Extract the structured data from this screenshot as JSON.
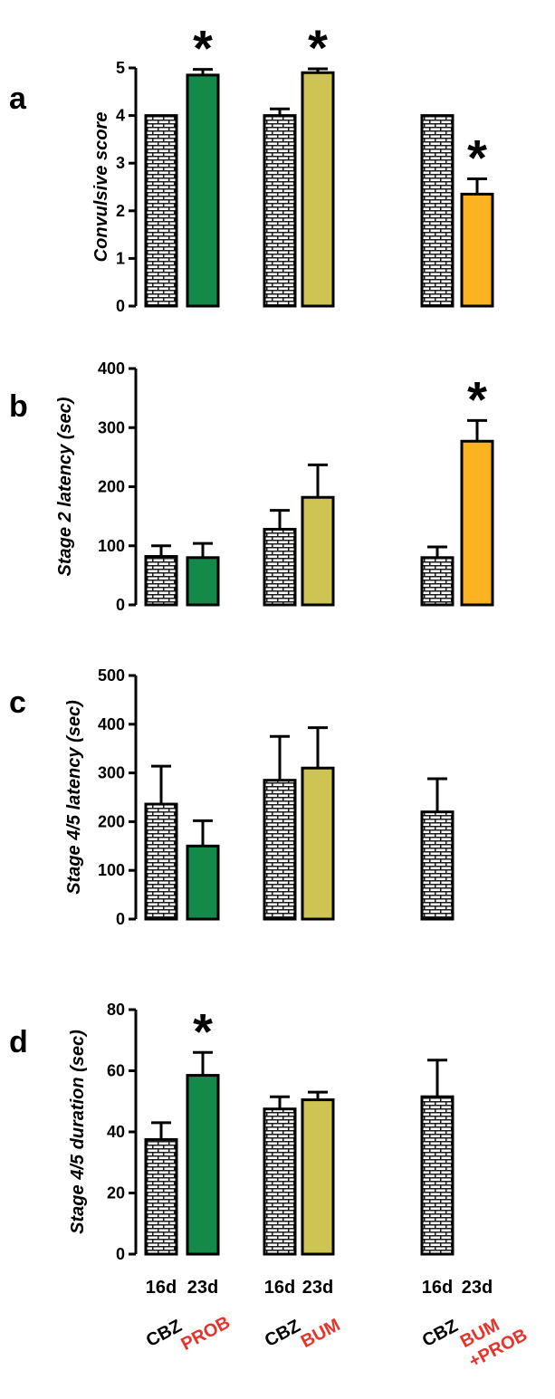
{
  "figure": {
    "day_labels": [
      "16d",
      "23d",
      "16d",
      "23d",
      "16d",
      "23d"
    ],
    "group_labels": [
      {
        "lines": [
          "CBZ"
        ],
        "color": "#000000"
      },
      {
        "lines": [
          "PROB"
        ],
        "color": "#e8322a"
      },
      {
        "lines": [
          "CBZ"
        ],
        "color": "#000000"
      },
      {
        "lines": [
          "BUM"
        ],
        "color": "#e8322a"
      },
      {
        "lines": [
          "CBZ"
        ],
        "color": "#000000"
      },
      {
        "lines": [
          "BUM",
          "+PROB"
        ],
        "color": "#e8322a"
      }
    ],
    "colors": {
      "prob": "#138a4a",
      "bum": "#cdc452",
      "bum_prob": "#fbb321",
      "brick": "#1a1a1a"
    }
  },
  "chart_data": [
    {
      "type": "bar",
      "panel": "a",
      "ylabel": "Convulsive score",
      "ylim": [
        0,
        5
      ],
      "yticks": [
        0,
        1,
        2,
        3,
        4,
        5
      ],
      "categories": [
        "CBZ 16d",
        "PROB 23d",
        "CBZ 16d",
        "BUM 23d",
        "CBZ 16d",
        "BUM+PROB 23d"
      ],
      "values": [
        4.0,
        4.85,
        4.0,
        4.9,
        4.0,
        2.35
      ],
      "errors": [
        0,
        0.12,
        0.14,
        0.08,
        0,
        0.32
      ],
      "significant": [
        false,
        true,
        false,
        true,
        false,
        true
      ]
    },
    {
      "type": "bar",
      "panel": "b",
      "ylabel": "Stage 2 latency (sec)",
      "ylim": [
        0,
        400
      ],
      "yticks": [
        0,
        100,
        200,
        300,
        400
      ],
      "categories": [
        "CBZ 16d",
        "PROB 23d",
        "CBZ 16d",
        "BUM 23d",
        "CBZ 16d",
        "BUM+PROB 23d"
      ],
      "values": [
        82,
        80,
        128,
        182,
        80,
        277
      ],
      "errors": [
        18,
        24,
        32,
        55,
        18,
        35
      ],
      "significant": [
        false,
        false,
        false,
        false,
        false,
        true
      ]
    },
    {
      "type": "bar",
      "panel": "c",
      "ylabel": "Stage 4/5 latency (sec)",
      "ylim": [
        0,
        500
      ],
      "yticks": [
        0,
        100,
        200,
        300,
        400,
        500
      ],
      "categories": [
        "CBZ 16d",
        "PROB 23d",
        "CBZ 16d",
        "BUM 23d",
        "CBZ 16d",
        "BUM+PROB 23d"
      ],
      "values": [
        236,
        150,
        285,
        310,
        220,
        null
      ],
      "errors": [
        78,
        52,
        90,
        83,
        68,
        null
      ],
      "significant": [
        false,
        false,
        false,
        false,
        false,
        false
      ]
    },
    {
      "type": "bar",
      "panel": "d",
      "ylabel": "Stage 4/5 duration (sec)",
      "ylim": [
        0,
        80
      ],
      "yticks": [
        0,
        20,
        40,
        60,
        80
      ],
      "categories": [
        "CBZ 16d",
        "PROB 23d",
        "CBZ 16d",
        "BUM 23d",
        "CBZ 16d",
        "BUM+PROB 23d"
      ],
      "values": [
        37.5,
        58.5,
        47.5,
        50.5,
        51.5,
        null
      ],
      "errors": [
        5.5,
        7.5,
        4.0,
        2.5,
        12.0,
        null
      ],
      "significant": [
        false,
        true,
        false,
        false,
        false,
        false
      ]
    }
  ]
}
